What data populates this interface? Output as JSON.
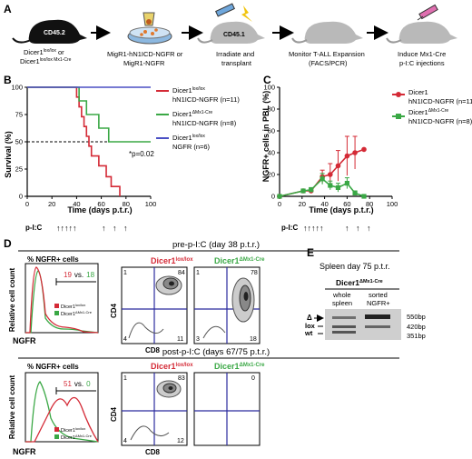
{
  "panel_a": {
    "letter": "A",
    "mouse1_label": "CD45.2",
    "donor_line1": "Dicer1",
    "donor_line1_sup": "lox/lox",
    "donor_line1_tail": " or",
    "donor_line2": "Dicer1",
    "donor_line2_sup": "lox/lox Mx1-Cre",
    "step2_line1": "MigR1-hN1ICD-NGFR or",
    "step2_line2": "MigR1-NGFR",
    "mouse2_label": "CD45.1",
    "step3_line1": "Irradiate and",
    "step3_line2": "transplant",
    "step4_line1": "Monitor T-ALL Expansion",
    "step4_line2": "(FACS/PCR)",
    "step5_line1": "Induce Mx1-Cre",
    "step5_line2": "p-I:C injections"
  },
  "panel_b": {
    "letter": "B",
    "ylabel": "Survival (%)",
    "xlabel": "Time (days p.t.r.)",
    "pic_label": "p-I:C",
    "pvalue": "*p=0.02",
    "legend": [
      {
        "l1": "Dicer1",
        "sup": "lox/lox",
        "l2": "hN1ICD-NGFR (n=11)",
        "color": "#d42a36"
      },
      {
        "l1": "Dicer1",
        "sup": "ΔMx1-Cre",
        "l2": "hN1ICD-NGFR (n=8)",
        "color": "#3aa845"
      },
      {
        "l1": "Dicer1",
        "sup": "lox/lox",
        "l2": "NGFR (n=6)",
        "color": "#4a4fc4"
      }
    ],
    "xticks": [
      "0",
      "20",
      "40",
      "60",
      "80",
      "100"
    ],
    "yticks": [
      "0",
      "25",
      "50",
      "75",
      "100"
    ]
  },
  "panel_c": {
    "letter": "C",
    "ylabel": "NGFR+ cells in PBL (%)",
    "xlabel": "Time (days p.t.r.)",
    "pic_label": "p-I:C",
    "legend": [
      {
        "l1": "Dicer1",
        "sup": "lox/lox",
        "l2": "hN1ICD-NGFR (n=11)",
        "color": "#d42a36"
      },
      {
        "l1": "Dicer1",
        "sup": "ΔMx1-Cre",
        "l2": "hN1ICD-NGFR (n=8)",
        "color": "#3aa845"
      }
    ],
    "xticks": [
      "0",
      "20",
      "40",
      "60",
      "80",
      "100"
    ],
    "yticks": [
      "0",
      "20",
      "40",
      "60",
      "80",
      "100"
    ]
  },
  "panel_d": {
    "letter": "D",
    "pre_title": "pre-p-I:C (day 38 p.t.r.)",
    "post_title": "post-p-I:C (days 67/75 p.t.r.)",
    "hist_title": "% NGFR+ cells",
    "hist_ylabel": "Relative cell count",
    "hist_xlabel": "NGFR",
    "pre_red_pct": "19",
    "pre_green_pct": "18",
    "post_red_pct": "51",
    "post_green_pct": "0",
    "vs": "vs.",
    "col_red_title": "Dicer1",
    "col_red_sup": "lox/lox",
    "col_green_title": "Dicer1",
    "col_green_sup": "ΔMx1-Cre",
    "legend_red": "Dicer1",
    "legend_red_sup": "lox/lox",
    "legend_green": "Dicer1",
    "legend_green_sup": "ΔMx1-Cre",
    "cd4": "CD4",
    "cd8": "CD8",
    "pre_red_quads": {
      "tl": "1",
      "tr": "84",
      "bl": "4",
      "br": "11"
    },
    "pre_green_quads": {
      "tl": "1",
      "tr": "78",
      "bl": "3",
      "br": "18"
    },
    "post_red_quads": {
      "tl": "1",
      "tr": "83",
      "bl": "4",
      "br": "12"
    },
    "post_green_quads": {
      "tr": "0"
    }
  },
  "panel_e": {
    "letter": "E",
    "title": "Spleen day 75 p.t.r.",
    "header": "Dicer1",
    "header_sup": "ΔMx1-Cre",
    "lane1_l1": "whole",
    "lane1_l2": "spleen",
    "lane2_l1": "sorted",
    "lane2_l2": "NGFR+",
    "band_delta": "Δ",
    "band_lox": "lox",
    "band_wt": "wt",
    "size1": "550bp",
    "size2": "420bp",
    "size3": "351bp"
  },
  "chart_data": [
    {
      "type": "line",
      "title": "",
      "xlabel": "Time (days p.t.r.)",
      "ylabel": "Survival (%)",
      "xlim": [
        0,
        100
      ],
      "ylim": [
        0,
        100
      ],
      "series": [
        {
          "name": "Dicer1 lox/lox hN1ICD-NGFR (n=11)",
          "color": "#d42a36",
          "x": [
            0,
            38,
            40,
            42,
            44,
            46,
            48,
            50,
            52,
            58,
            64,
            68,
            72,
            75
          ],
          "y": [
            100,
            100,
            91,
            82,
            73,
            64,
            55,
            46,
            37,
            28,
            18,
            9,
            9,
            0
          ]
        },
        {
          "name": "Dicer1 ΔMx1-Cre hN1ICD-NGFR (n=8)",
          "color": "#3aa845",
          "x": [
            0,
            38,
            42,
            48,
            58,
            66,
            100
          ],
          "y": [
            100,
            100,
            87.5,
            75,
            62.5,
            50,
            50
          ]
        },
        {
          "name": "Dicer1 lox/lox NGFR (n=6)",
          "color": "#4a4fc4",
          "x": [
            0,
            100
          ],
          "y": [
            100,
            100
          ]
        }
      ]
    },
    {
      "type": "line",
      "title": "",
      "xlabel": "Time (days p.t.r.)",
      "ylabel": "NGFR+ cells in PBL (%)",
      "xlim": [
        0,
        100
      ],
      "ylim": [
        0,
        100
      ],
      "series": [
        {
          "name": "Dicer1 lox/lox hN1ICD-NGFR (n=11)",
          "color": "#d42a36",
          "x": [
            0,
            21,
            28,
            38,
            45,
            52,
            60,
            67,
            75
          ],
          "y": [
            0,
            5,
            5,
            18,
            20,
            28,
            37,
            40,
            43
          ],
          "err": [
            0,
            1,
            2,
            6,
            10,
            14,
            18,
            15,
            0
          ]
        },
        {
          "name": "Dicer1 ΔMx1-Cre hN1ICD-NGFR (n=8)",
          "color": "#3aa845",
          "x": [
            0,
            21,
            28,
            38,
            45,
            52,
            60,
            67,
            75
          ],
          "y": [
            0,
            5,
            6,
            16,
            10,
            8,
            12,
            3,
            0
          ],
          "err": [
            0,
            1,
            2,
            5,
            4,
            4,
            5,
            2,
            0
          ]
        }
      ]
    }
  ]
}
